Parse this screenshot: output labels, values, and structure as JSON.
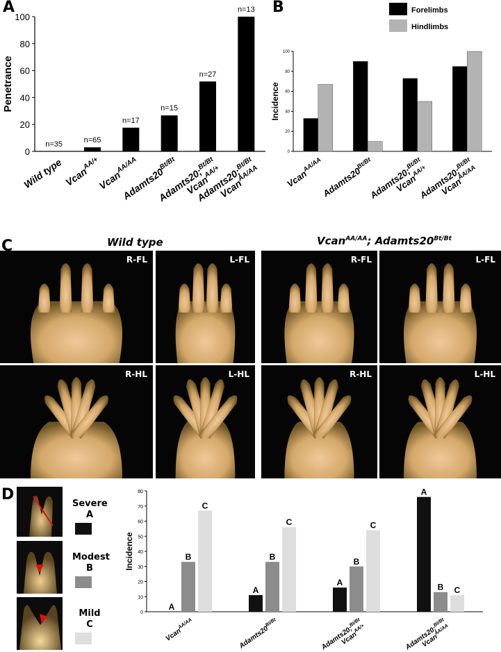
{
  "panels": {
    "A": "A",
    "B": "B",
    "C": "C",
    "D": "D"
  },
  "chart_data": [
    {
      "type": "bar",
      "panel": "A",
      "ylabel": "Penetrance",
      "ylim": [
        0,
        100
      ],
      "yticks": [
        "0",
        "20",
        "40",
        "60",
        "80",
        "100"
      ],
      "categories": [
        {
          "gene": "Wild type",
          "sup": "",
          "gene2": "",
          "sup2": ""
        },
        {
          "gene": "Vcan",
          "sup": "AA/+",
          "gene2": "",
          "sup2": ""
        },
        {
          "gene": "Vcan",
          "sup": "AA/AA",
          "gene2": "",
          "sup2": ""
        },
        {
          "gene": "Adamts20",
          "sup": "Bt/Bt",
          "gene2": "",
          "sup2": ""
        },
        {
          "gene": "Adamts20;",
          "sup": "Bt/Bt",
          "gene2": "Vcan",
          "sup2": "AA/+"
        },
        {
          "gene": "Adamts20;",
          "sup": "Bt/Bt",
          "gene2": "Vcan",
          "sup2": "AA/AA"
        }
      ],
      "values": [
        0,
        3,
        17.6,
        26.7,
        51.9,
        100
      ],
      "labels": [
        "n=35",
        "n=65",
        "n=17",
        "n=15",
        "n=27",
        "n=13"
      ],
      "color": "#000000"
    },
    {
      "type": "bar",
      "panel": "B",
      "ylabel": "Incidence",
      "ylim": [
        0,
        100
      ],
      "yticks": [
        "0",
        "20",
        "40",
        "60",
        "80",
        "100"
      ],
      "categories": [
        {
          "gene": "Vcan",
          "sup": "AA/AA",
          "gene2": "",
          "sup2": ""
        },
        {
          "gene": "Adamts20",
          "sup": "Bt/Bt",
          "gene2": "",
          "sup2": ""
        },
        {
          "gene": "Adamts20;",
          "sup": "Bt/Bt",
          "gene2": "Vcan",
          "sup2": "AA/+"
        },
        {
          "gene": "Adamts20;",
          "sup": "Bt/Bt",
          "gene2": "Vcan",
          "sup2": "AA/AA"
        }
      ],
      "series": [
        {
          "name": "Forelimbs",
          "values": [
            33,
            90,
            73,
            85
          ],
          "color": "#000000"
        },
        {
          "name": "Hindlimbs",
          "values": [
            67,
            10,
            50,
            100
          ],
          "color": "#b3b3b3"
        }
      ],
      "legend": "top-right"
    },
    {
      "type": "bar",
      "panel": "D",
      "ylabel": "Incidence",
      "ylim": [
        0,
        80
      ],
      "yticks": [
        "0",
        "10",
        "20",
        "30",
        "40",
        "50",
        "60",
        "70",
        "80"
      ],
      "categories": [
        {
          "gene": "Vcan",
          "sup": "AA/AA",
          "gene2": "",
          "sup2": ""
        },
        {
          "gene": "Adamts20",
          "sup": "Bt/Bt",
          "gene2": "",
          "sup2": ""
        },
        {
          "gene": "Adamts20;",
          "sup": "Bt/Bt",
          "gene2": "Vcan",
          "sup2": "AA/+"
        },
        {
          "gene": "Adamts20;",
          "sup": "Bt/Bt",
          "gene2": "Vcan",
          "sup2": "AA/AA"
        }
      ],
      "series": [
        {
          "name": "A",
          "values": [
            0,
            11,
            16,
            76
          ],
          "color": "#111111"
        },
        {
          "name": "B",
          "values": [
            33,
            33,
            30,
            13
          ],
          "color": "#8c8c8c"
        },
        {
          "name": "C",
          "values": [
            67,
            56,
            54,
            11
          ],
          "color": "#dedede"
        }
      ]
    }
  ],
  "photos": {
    "titles": {
      "wt": "Wild type",
      "mut_gene1": "Vcan",
      "mut_sup1": "AA/AA",
      "mut_sep": "; ",
      "mut_gene2": "Adamts20",
      "mut_sup2": "Bt/Bt"
    },
    "labels": [
      "R-FL",
      "L-FL",
      "R-FL",
      "L-FL",
      "R-HL",
      "L-HL",
      "R-HL",
      "L-HL"
    ]
  },
  "severity_key": [
    {
      "title": "Severe",
      "letter": "A",
      "color": "#111111"
    },
    {
      "title": "Modest",
      "letter": "B",
      "color": "#8c8c8c"
    },
    {
      "title": "Mild",
      "letter": "C",
      "color": "#dedede"
    }
  ]
}
